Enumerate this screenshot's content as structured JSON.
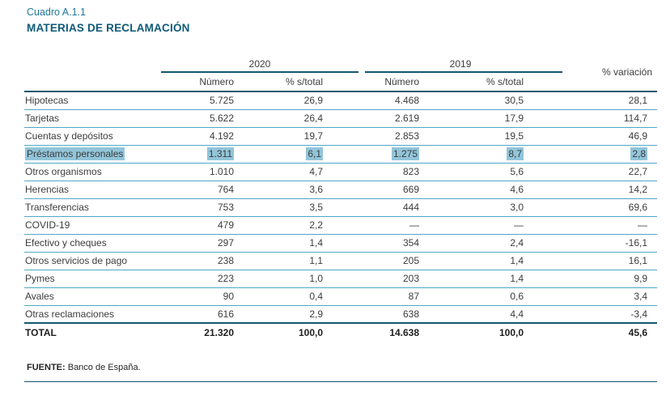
{
  "page": {
    "kicker": "Cuadro A.1.1",
    "title": "MATERIAS DE RECLAMACIÓN",
    "source_label": "FUENTE:",
    "source_text": " Banco de España."
  },
  "table": {
    "col_groups": [
      {
        "label": "2020"
      },
      {
        "label": "2019"
      },
      {
        "label": "% variación"
      }
    ],
    "sub_headers": [
      "Número",
      "% s/total",
      "Número",
      "% s/total"
    ],
    "rows": [
      {
        "label": "Hipotecas",
        "values": [
          "5.725",
          "26,9",
          "4.468",
          "30,5",
          "28,1"
        ],
        "highlighted": false
      },
      {
        "label": "Tarjetas",
        "values": [
          "5.622",
          "26,4",
          "2.619",
          "17,9",
          "114,7"
        ],
        "highlighted": false
      },
      {
        "label": "Cuentas y depósitos",
        "values": [
          "4.192",
          "19,7",
          "2.853",
          "19,5",
          "46,9"
        ],
        "highlighted": false
      },
      {
        "label": "Préstamos personales",
        "values": [
          "1.311",
          "6,1",
          "1.275",
          "8,7",
          "2,8"
        ],
        "highlighted": true
      },
      {
        "label": "Otros organismos",
        "values": [
          "1.010",
          "4,7",
          "823",
          "5,6",
          "22,7"
        ],
        "highlighted": false
      },
      {
        "label": "Herencias",
        "values": [
          "764",
          "3,6",
          "669",
          "4,6",
          "14,2"
        ],
        "highlighted": false
      },
      {
        "label": "Transferencias",
        "values": [
          "753",
          "3,5",
          "444",
          "3,0",
          "69,6"
        ],
        "highlighted": false
      },
      {
        "label": "COVID-19",
        "values": [
          "479",
          "2,2",
          "—",
          "—",
          "—"
        ],
        "highlighted": false
      },
      {
        "label": "Efectivo y cheques",
        "values": [
          "297",
          "1,4",
          "354",
          "2,4",
          "-16,1"
        ],
        "highlighted": false
      },
      {
        "label": "Otros servicios de pago",
        "values": [
          "238",
          "1,1",
          "205",
          "1,4",
          "16,1"
        ],
        "highlighted": false
      },
      {
        "label": "Pymes",
        "values": [
          "223",
          "1,0",
          "203",
          "1,4",
          "9,9"
        ],
        "highlighted": false
      },
      {
        "label": "Avales",
        "values": [
          "90",
          "0,4",
          "87",
          "0,6",
          "3,4"
        ],
        "highlighted": false
      },
      {
        "label": "Otras reclamaciones",
        "values": [
          "616",
          "2,9",
          "638",
          "4,4",
          "-3,4"
        ],
        "highlighted": false
      }
    ],
    "total_row": {
      "label": "TOTAL",
      "values": [
        "21.320",
        "100,0",
        "14.638",
        "100,0",
        "45,6"
      ],
      "highlighted": false
    }
  },
  "colors": {
    "accent_dark": "#14586F",
    "row_separator": "#4FA8C5",
    "highlight": "#92C5DA",
    "kicker_teal": "#1E7A99",
    "title_dark": "#0E5A78",
    "body_text": "#3C3C3C"
  }
}
